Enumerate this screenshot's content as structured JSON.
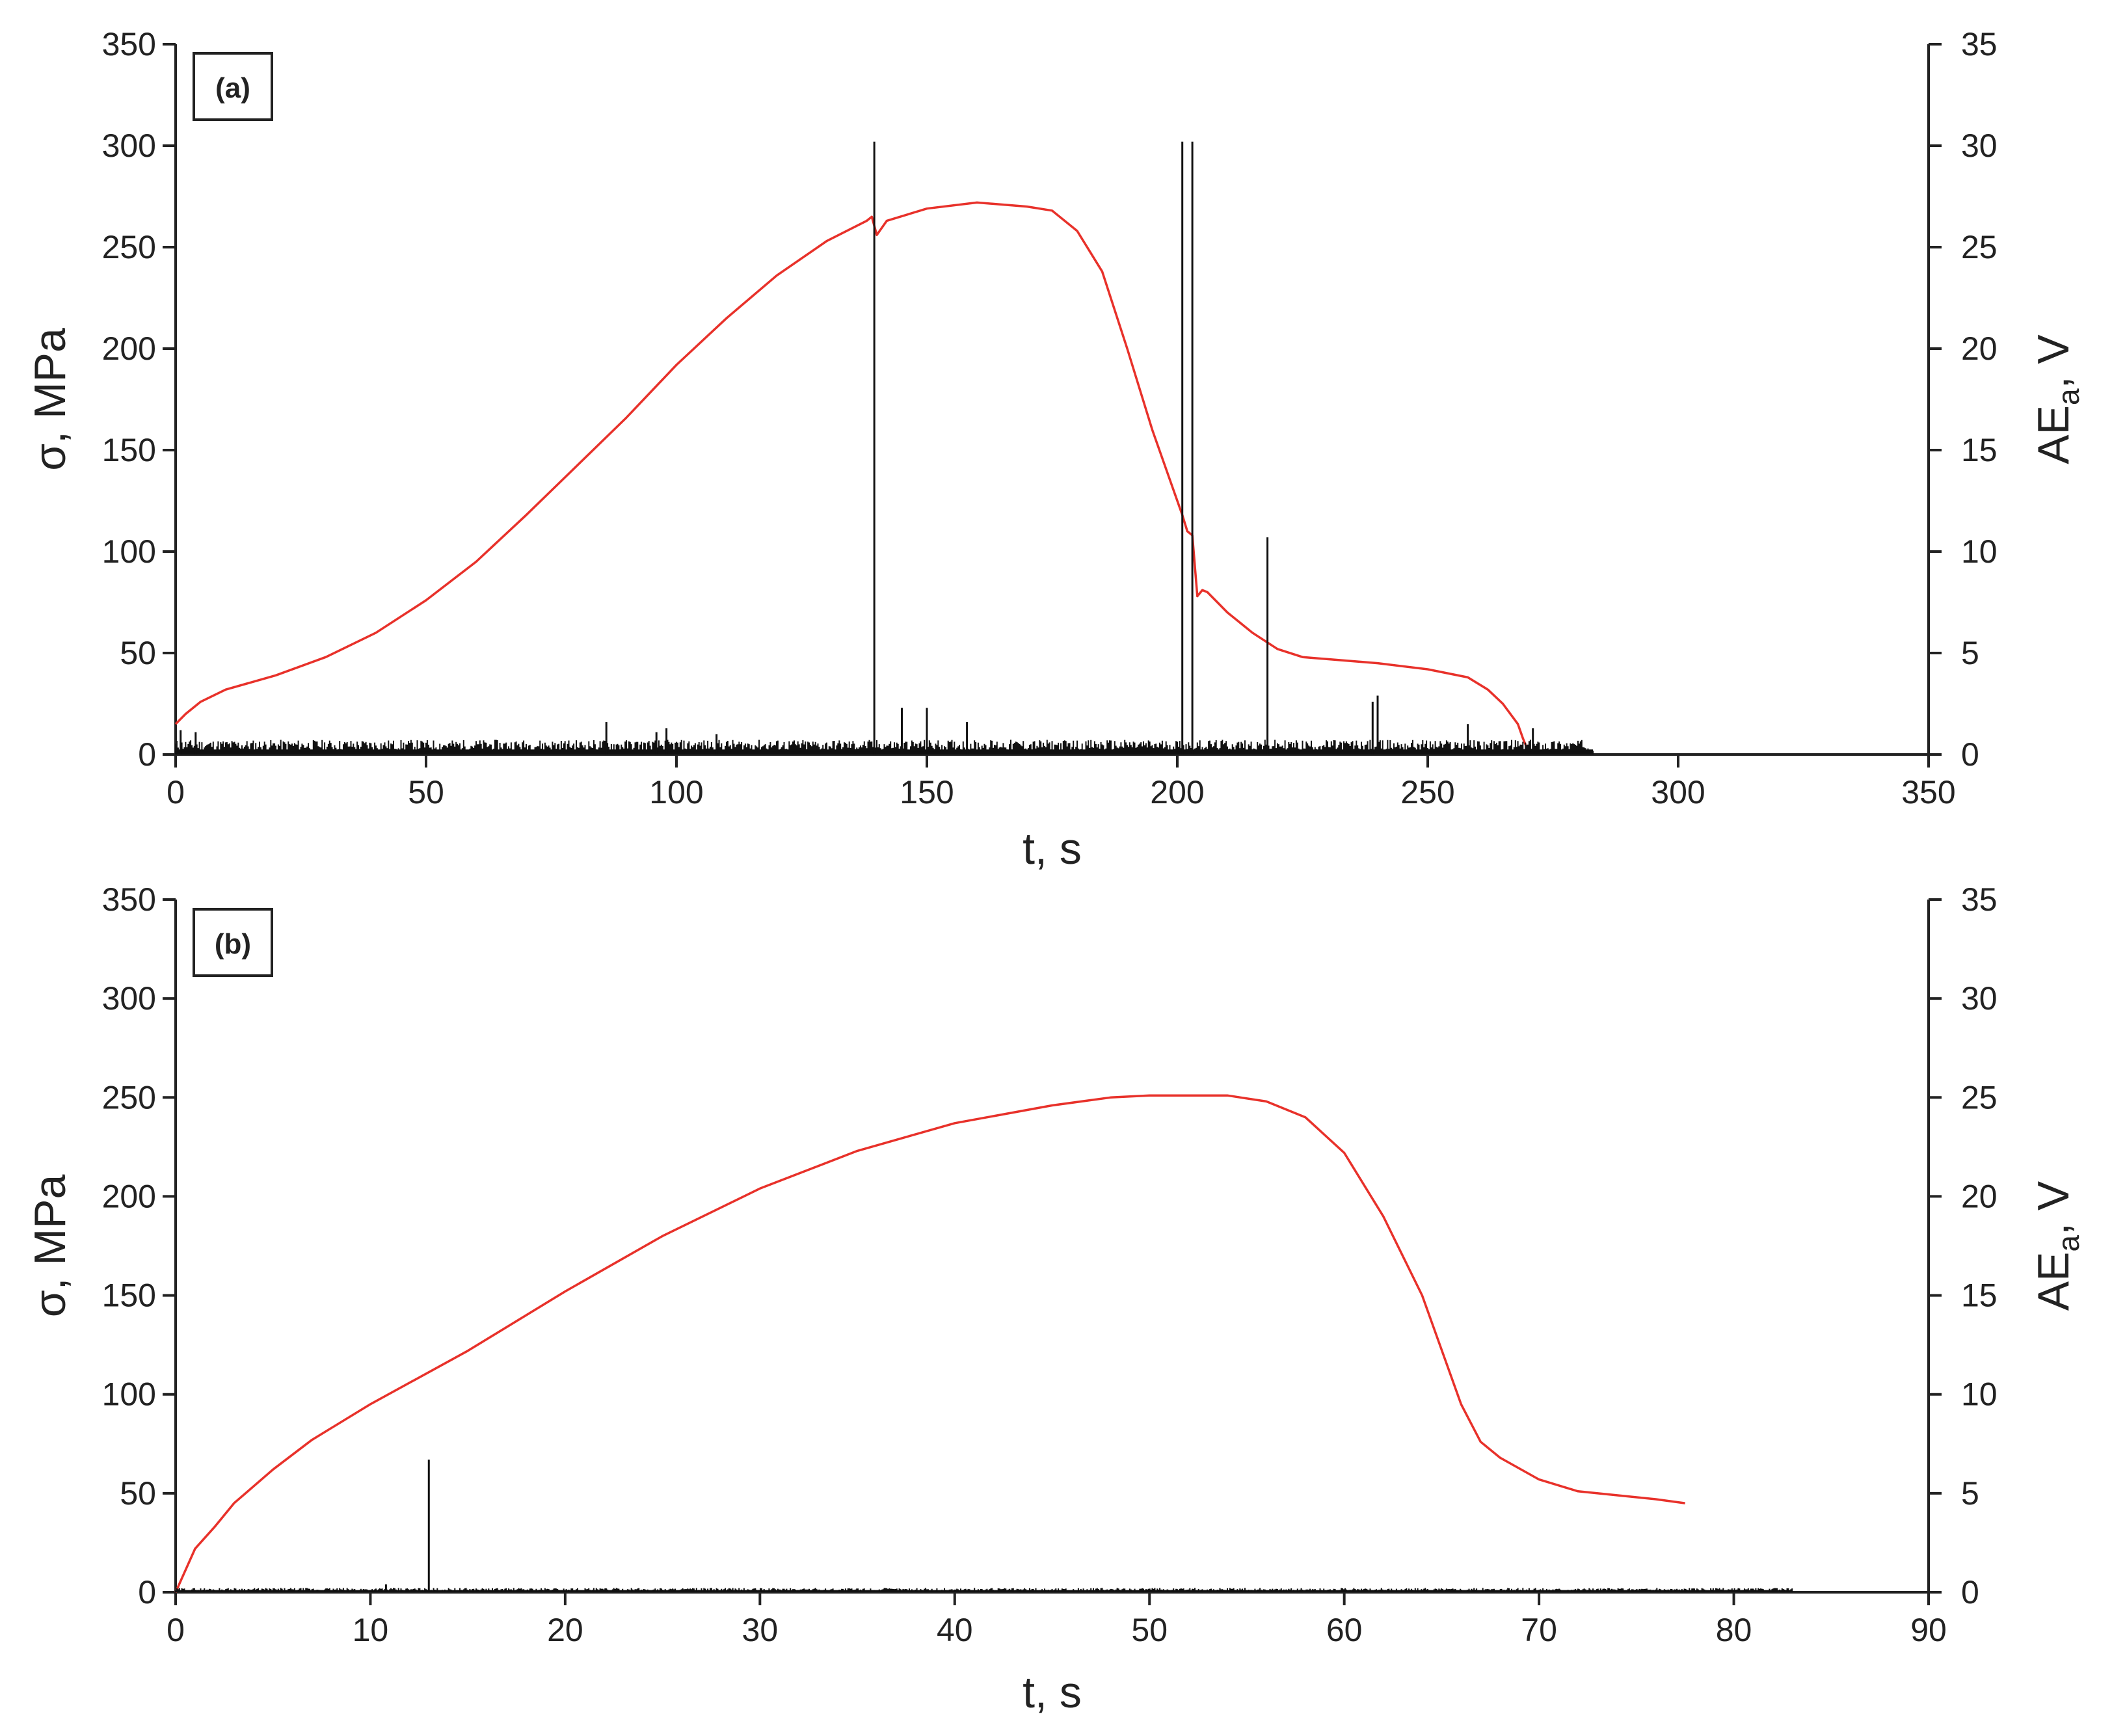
{
  "chart_data": [
    {
      "type": "line",
      "panel_label": "(a)",
      "xlabel": "t, s",
      "ylabel": "σ, MPa",
      "y2label": {
        "base": "AE",
        "subscript": "a",
        "suffix": ", V"
      },
      "xlim": [
        0,
        350
      ],
      "ylim": [
        0,
        350
      ],
      "y2lim": [
        0,
        35
      ],
      "x_ticks": [
        0,
        50,
        100,
        150,
        200,
        250,
        300,
        350
      ],
      "y_ticks": [
        0,
        50,
        100,
        150,
        200,
        250,
        300,
        350
      ],
      "y2_ticks": [
        0,
        5,
        10,
        15,
        20,
        25,
        30,
        35
      ],
      "grid": false,
      "series": [
        {
          "axis": "left",
          "color": "#e8312a",
          "points": [
            [
              0,
              15
            ],
            [
              2,
              20
            ],
            [
              5,
              26
            ],
            [
              10,
              32
            ],
            [
              20,
              39
            ],
            [
              30,
              48
            ],
            [
              40,
              60
            ],
            [
              50,
              76
            ],
            [
              60,
              95
            ],
            [
              70,
              118
            ],
            [
              80,
              142
            ],
            [
              90,
              166
            ],
            [
              100,
              192
            ],
            [
              110,
              215
            ],
            [
              120,
              236
            ],
            [
              130,
              253
            ],
            [
              138,
              263
            ],
            [
              139,
              265
            ],
            [
              140,
              256
            ],
            [
              142,
              263
            ],
            [
              150,
              269
            ],
            [
              160,
              272
            ],
            [
              170,
              270
            ],
            [
              175,
              268
            ],
            [
              180,
              258
            ],
            [
              185,
              238
            ],
            [
              190,
              200
            ],
            [
              195,
              160
            ],
            [
              199,
              132
            ],
            [
              201,
              118
            ],
            [
              202,
              110
            ],
            [
              203,
              108
            ],
            [
              204,
              78
            ],
            [
              205,
              81
            ],
            [
              206,
              80
            ],
            [
              210,
              70
            ],
            [
              215,
              60
            ],
            [
              220,
              52
            ],
            [
              225,
              48
            ],
            [
              230,
              47
            ],
            [
              240,
              45
            ],
            [
              250,
              42
            ],
            [
              258,
              38
            ],
            [
              262,
              32
            ],
            [
              265,
              25
            ],
            [
              268,
              15
            ],
            [
              269,
              8
            ],
            [
              270,
              2
            ]
          ]
        },
        {
          "axis": "right",
          "color": "#111111",
          "noise_level": 0.5,
          "end_x": 283,
          "spikes": [
            [
              1,
              1.2
            ],
            [
              4,
              1.1
            ],
            [
              86,
              1.6
            ],
            [
              96,
              1.1
            ],
            [
              98,
              1.3
            ],
            [
              108,
              1.0
            ],
            [
              139.5,
              30.2
            ],
            [
              145,
              2.3
            ],
            [
              150,
              2.3
            ],
            [
              158,
              1.6
            ],
            [
              201,
              30.2
            ],
            [
              203,
              30.2
            ],
            [
              218,
              10.7
            ],
            [
              239,
              2.6
            ],
            [
              240,
              2.9
            ],
            [
              258,
              1.5
            ],
            [
              271,
              1.3
            ]
          ]
        }
      ]
    },
    {
      "type": "line",
      "panel_label": "(b)",
      "xlabel": "t, s",
      "ylabel": "σ, MPa",
      "y2label": {
        "base": "AE",
        "subscript": "a",
        "suffix": ", V"
      },
      "xlim": [
        0,
        90
      ],
      "ylim": [
        0,
        350
      ],
      "y2lim": [
        0,
        35
      ],
      "x_ticks": [
        0,
        10,
        20,
        30,
        40,
        50,
        60,
        70,
        80,
        90
      ],
      "y_ticks": [
        0,
        50,
        100,
        150,
        200,
        250,
        300,
        350
      ],
      "y2_ticks": [
        0,
        5,
        10,
        15,
        20,
        25,
        30,
        35
      ],
      "grid": false,
      "series": [
        {
          "axis": "left",
          "color": "#e8312a",
          "points": [
            [
              0,
              0
            ],
            [
              1,
              22
            ],
            [
              2,
              33
            ],
            [
              3,
              45
            ],
            [
              5,
              62
            ],
            [
              7,
              77
            ],
            [
              10,
              95
            ],
            [
              15,
              122
            ],
            [
              20,
              152
            ],
            [
              25,
              180
            ],
            [
              30,
              204
            ],
            [
              35,
              223
            ],
            [
              40,
              237
            ],
            [
              45,
              246
            ],
            [
              48,
              250
            ],
            [
              50,
              251
            ],
            [
              52,
              251
            ],
            [
              54,
              251
            ],
            [
              56,
              248
            ],
            [
              58,
              240
            ],
            [
              60,
              222
            ],
            [
              62,
              190
            ],
            [
              64,
              150
            ],
            [
              66,
              95
            ],
            [
              67,
              76
            ],
            [
              68,
              68
            ],
            [
              70,
              57
            ],
            [
              72,
              51
            ],
            [
              74,
              49
            ],
            [
              76,
              47
            ],
            [
              77.5,
              45
            ]
          ]
        },
        {
          "axis": "right",
          "color": "#111111",
          "noise_level": 0.15,
          "end_x": 83,
          "spikes": [
            [
              10.8,
              0.4
            ],
            [
              13,
              6.7
            ]
          ]
        }
      ]
    }
  ]
}
